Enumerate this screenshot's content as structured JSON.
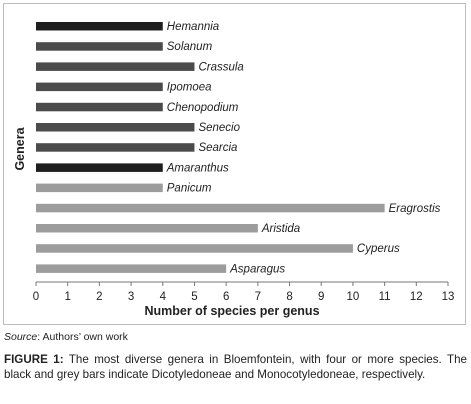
{
  "chart_data": {
    "type": "bar",
    "orientation": "horizontal",
    "categories": [
      "Hemannia",
      "Solanum",
      "Crassula",
      "Ipomoea",
      "Chenopodium",
      "Senecio",
      "Searcia",
      "Amaranthus",
      "Panicum",
      "Eragrostis",
      "Aristida",
      "Cyperus",
      "Asparagus"
    ],
    "values": [
      4,
      4,
      5,
      4,
      4,
      5,
      5,
      4,
      4,
      11,
      7,
      10,
      6
    ],
    "group": [
      "Dicotyledoneae",
      "Dicotyledoneae",
      "Dicotyledoneae",
      "Dicotyledoneae",
      "Dicotyledoneae",
      "Dicotyledoneae",
      "Dicotyledoneae",
      "Dicotyledoneae",
      "Monocotyledoneae",
      "Monocotyledoneae",
      "Monocotyledoneae",
      "Monocotyledoneae",
      "Monocotyledoneae"
    ],
    "bar_colors": [
      "#1e1e1e",
      "#4b4b4b",
      "#4b4b4b",
      "#4b4b4b",
      "#4b4b4b",
      "#4b4b4b",
      "#4b4b4b",
      "#1e1e1e",
      "#9c9c9c",
      "#9c9c9c",
      "#9c9c9c",
      "#9c9c9c",
      "#9c9c9c"
    ],
    "xlabel": "Number of species per genus",
    "ylabel": "Genera",
    "xlim": [
      0,
      13
    ],
    "xticks": [
      "0",
      "1",
      "2",
      "3",
      "4",
      "5",
      "6",
      "7",
      "8",
      "9",
      "10",
      "11",
      "12",
      "13"
    ],
    "grid": false,
    "legend": "none"
  },
  "source": {
    "label": "Source",
    "text": ": Authors’ own work"
  },
  "caption": {
    "label": "FIGURE 1:",
    "text": " The most diverse genera in Bloemfontein, with four or more species. The black and grey bars indicate Dicotyledoneae and Monocotyledoneae, respectively."
  }
}
